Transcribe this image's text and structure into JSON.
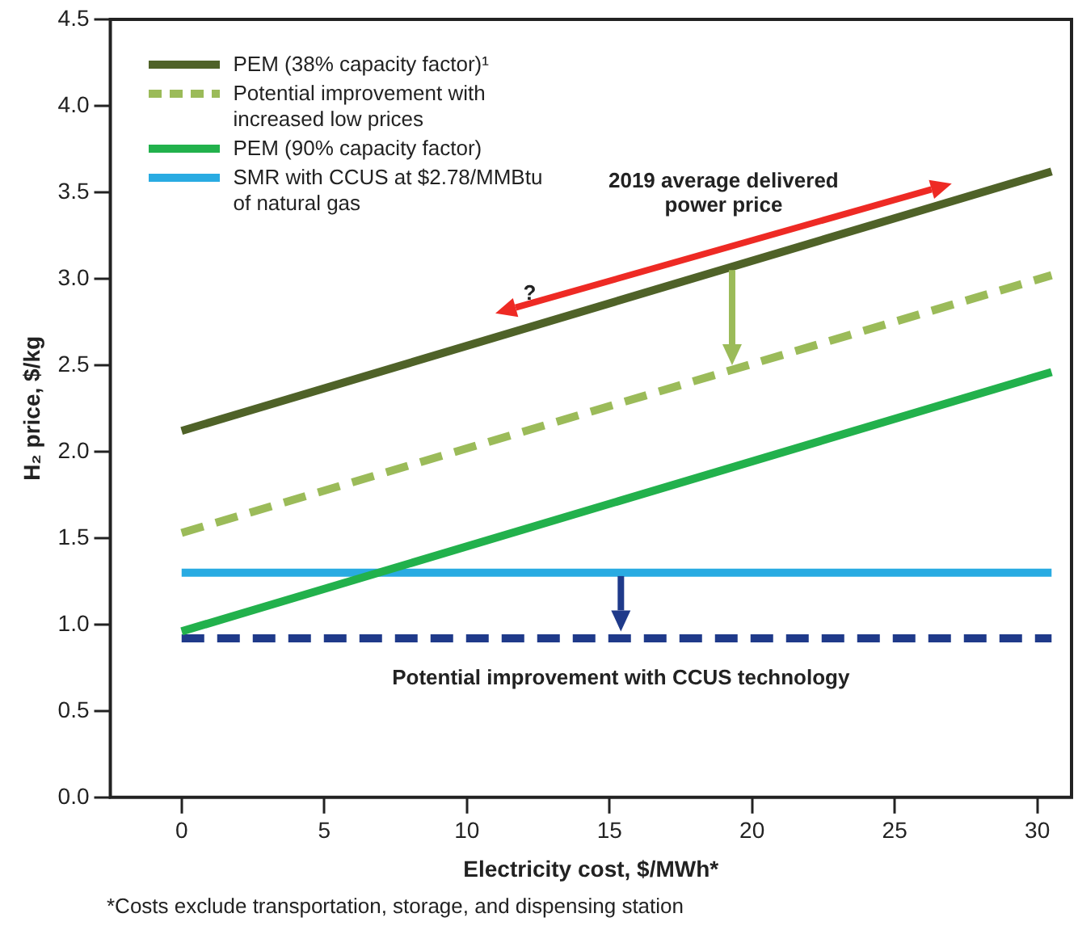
{
  "chart_data": {
    "type": "line",
    "xlabel": "Electricity cost, $/MWh*",
    "ylabel": "H₂ price, $/kg",
    "xlim": [
      -2.5,
      31.2
    ],
    "xticks": [
      0,
      5,
      10,
      15,
      20,
      25,
      30
    ],
    "ylim": [
      0,
      4.5
    ],
    "yticks": [
      {
        "value": 0,
        "label": "0.0"
      },
      0.5,
      {
        "value": 1,
        "label": "1.0"
      },
      1.5,
      {
        "value": 2,
        "label": "2.0"
      },
      2.5,
      {
        "value": 3,
        "label": "3.0"
      },
      3.5,
      {
        "value": 4,
        "label": "4.0"
      },
      4.5
    ],
    "grid": false,
    "legend": "top left",
    "marker": "none",
    "x": [
      0,
      30.5
    ],
    "series": [
      {
        "name": "PEM (38% capacity factor)¹",
        "color": "#4f6228",
        "values": [
          2.12,
          3.62
        ],
        "line_style": "solid"
      },
      {
        "name": "Potential improvement with increased low prices",
        "color": "#9bbb59",
        "values": [
          1.53,
          3.02
        ],
        "line_style": "dashed"
      },
      {
        "name": "PEM (90% capacity factor)",
        "color": "#22b14c",
        "values": [
          0.96,
          2.46
        ],
        "line_style": "solid"
      },
      {
        "name": "SMR with CCUS at $2.78/MMBtu of natural gas",
        "color": "#29abe2",
        "values": [
          1.3,
          1.3
        ],
        "line_style": "solid"
      },
      {
        "color": "#1f3a8a",
        "values": [
          0.92,
          0.92
        ],
        "line_style": "dashed"
      }
    ],
    "annotations": [
      "2019 average delivered power price",
      "?",
      "Potential improvement with CCUS technology",
      "*Costs exclude transportation, storage, and dispensing station"
    ]
  }
}
